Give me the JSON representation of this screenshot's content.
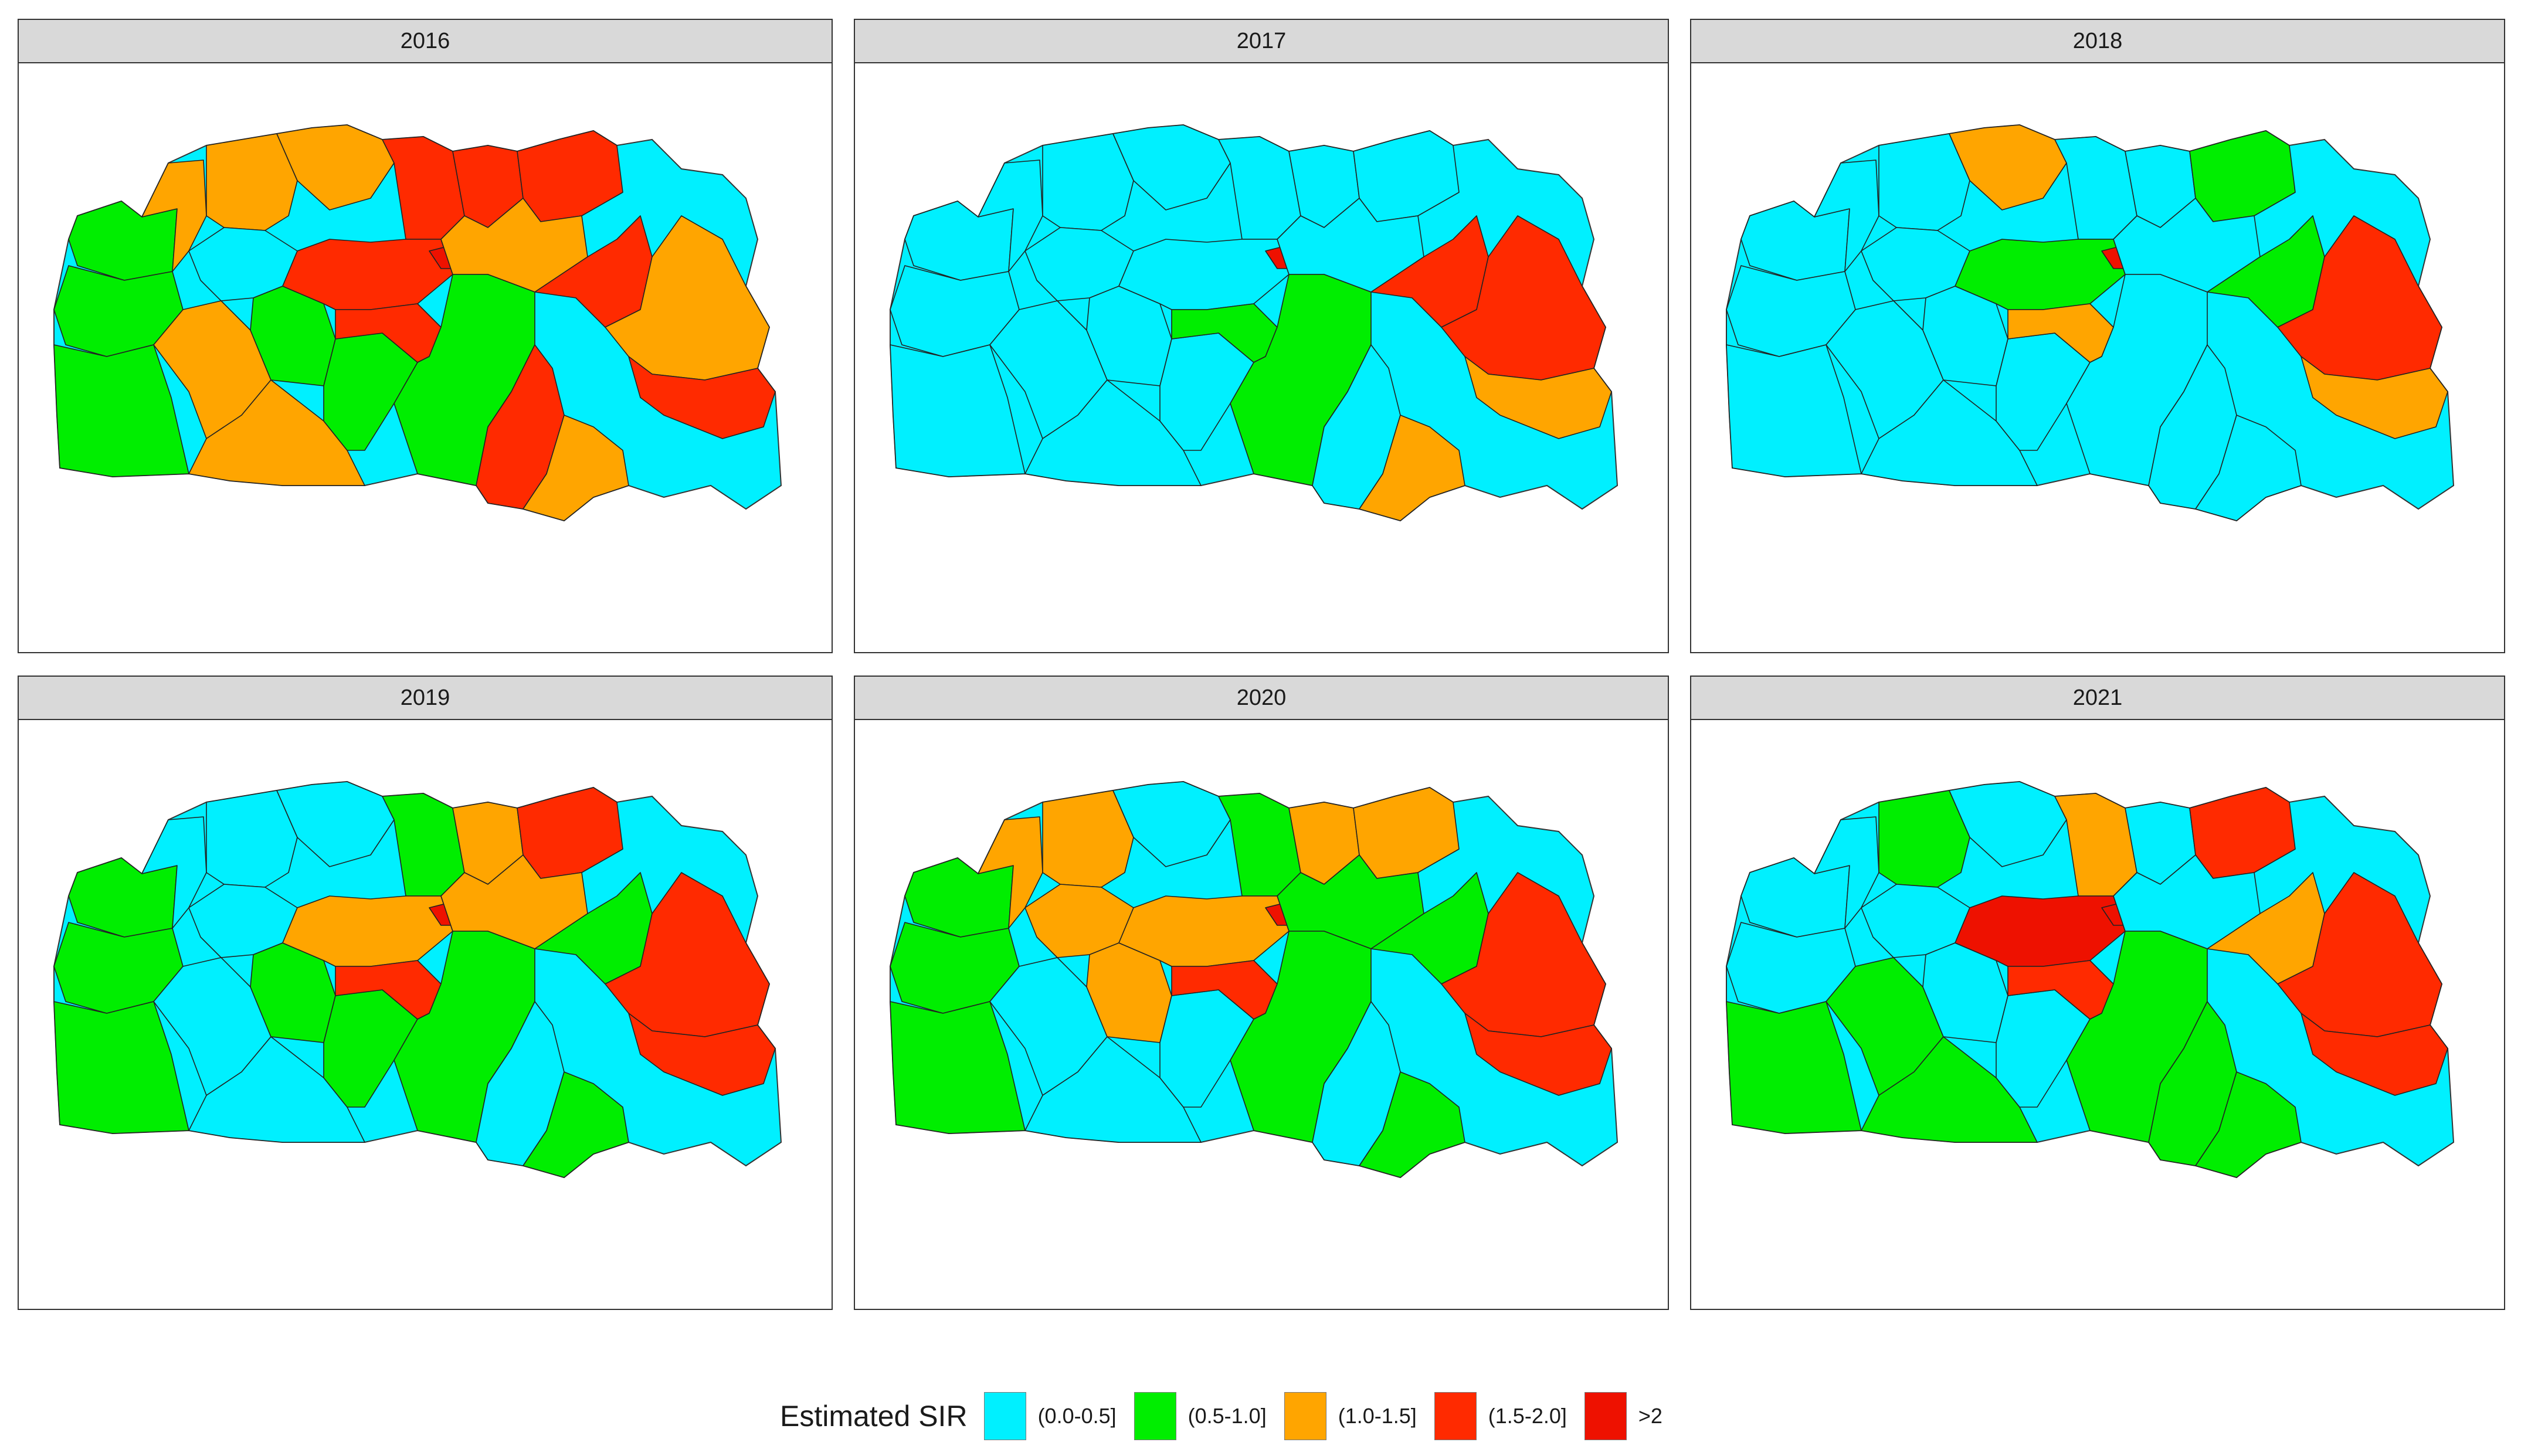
{
  "legend": {
    "title": "Estimated SIR",
    "classes": [
      {
        "label": "(0.0-0.5]",
        "color": "#00f0ff"
      },
      {
        "label": "(0.5-1.0]",
        "color": "#00ee00"
      },
      {
        "label": "(1.0-1.5]",
        "color": "#ffa500"
      },
      {
        "label": "(1.5-2.0]",
        "color": "#ff2a00"
      },
      {
        "label": ">2",
        "color": "#ee1100"
      }
    ]
  },
  "panels": [
    {
      "label": "2016",
      "regions": [
        "1",
        "1",
        "1",
        "2",
        "2",
        "2",
        "2",
        "2",
        "0",
        "1",
        "1",
        "3",
        "3",
        "3",
        "3",
        "3",
        "4",
        "2",
        "1",
        "3",
        "2",
        "3",
        "2",
        "3"
      ]
    },
    {
      "label": "2017",
      "regions": [
        "0",
        "0",
        "0",
        "0",
        "0",
        "0",
        "0",
        "0",
        "0",
        "0",
        "0",
        "0",
        "0",
        "0",
        "1",
        "0",
        "4",
        "0",
        "1",
        "0",
        "2",
        "3",
        "3",
        "2"
      ]
    },
    {
      "label": "2018",
      "regions": [
        "0",
        "0",
        "0",
        "0",
        "0",
        "0",
        "0",
        "2",
        "0",
        "0",
        "0",
        "0",
        "0",
        "1",
        "2",
        "1",
        "4",
        "0",
        "0",
        "0",
        "0",
        "1",
        "3",
        "2"
      ]
    },
    {
      "label": "2019",
      "regions": [
        "1",
        "1",
        "1",
        "0",
        "0",
        "0",
        "0",
        "0",
        "0",
        "1",
        "1",
        "1",
        "2",
        "2",
        "3",
        "3",
        "4",
        "2",
        "1",
        "0",
        "1",
        "1",
        "3",
        "3"
      ]
    },
    {
      "label": "2020",
      "regions": [
        "1",
        "1",
        "1",
        "0",
        "0",
        "2",
        "2",
        "0",
        "2",
        "2",
        "0",
        "1",
        "2",
        "2",
        "3",
        "2",
        "4",
        "1",
        "1",
        "0",
        "1",
        "1",
        "3",
        "3"
      ]
    },
    {
      "label": "2021",
      "regions": [
        "0",
        "0",
        "1",
        "1",
        "1",
        "0",
        "1",
        "0",
        "0",
        "0",
        "0",
        "2",
        "0",
        "4",
        "3",
        "3",
        "4",
        "0",
        "1",
        "1",
        "1",
        "2",
        "3",
        "3"
      ]
    }
  ]
}
